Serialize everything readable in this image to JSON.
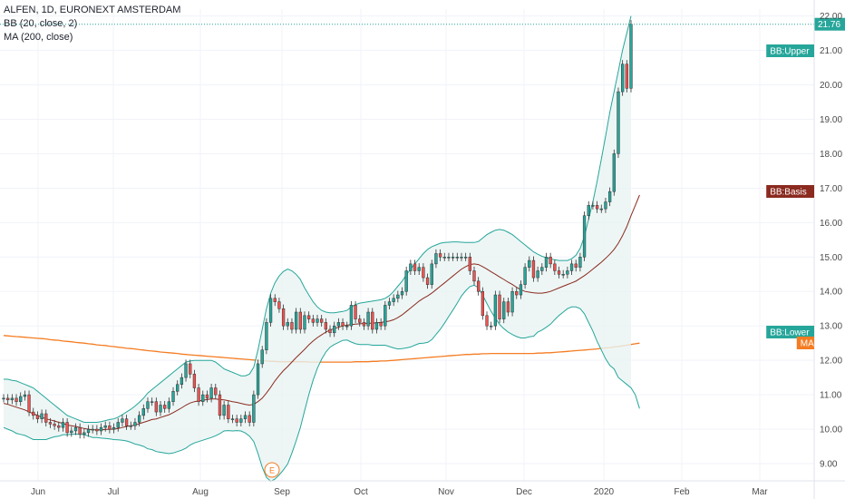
{
  "legend": {
    "symbol": "ALFEN, 1D, EURONEXT AMSTERDAM",
    "bb": "BB (20, close, 2)",
    "ma": "MA (200, close)"
  },
  "colors": {
    "up": "#26a69a",
    "down": "#ef5350",
    "bb_band": "#26a69a",
    "bb_basis": "#8b2a1f",
    "ma": "#f57c22",
    "fill": "#e8f4f2",
    "last_price": "#26a69a"
  },
  "chart_data": {
    "type": "candlestick",
    "x_ticks": [
      "Jun",
      "Jul",
      "Aug",
      "Sep",
      "Oct",
      "Nov",
      "Dec",
      "2020",
      "Feb",
      "Mar"
    ],
    "y_ticks": [
      "9.00",
      "10.00",
      "11.00",
      "12.00",
      "13.00",
      "14.00",
      "15.00",
      "16.00",
      "17.00",
      "18.00",
      "19.00",
      "20.00",
      "21.00",
      "22.00"
    ],
    "ylim": [
      8.5,
      22.2
    ],
    "last_price": "21.76",
    "tags": [
      "BB:Upper",
      "BB:Basis",
      "BB:Lower",
      "MA"
    ],
    "event_marker": "E",
    "close": [
      10.9,
      10.85,
      10.9,
      10.8,
      10.95,
      11.0,
      10.5,
      10.4,
      10.3,
      10.45,
      10.2,
      10.15,
      10.1,
      10.05,
      10.2,
      9.9,
      9.95,
      10.05,
      9.85,
      9.9,
      10.0,
      10.0,
      9.95,
      10.05,
      10.1,
      10.0,
      10.05,
      10.2,
      10.3,
      10.1,
      10.1,
      10.2,
      10.4,
      10.6,
      10.8,
      10.8,
      10.5,
      10.7,
      10.6,
      10.8,
      11.1,
      11.3,
      11.5,
      11.9,
      11.6,
      11.2,
      10.8,
      11.0,
      10.9,
      11.2,
      11.0,
      10.4,
      10.7,
      10.3,
      10.3,
      10.2,
      10.3,
      10.4,
      10.2,
      11.0,
      11.9,
      12.3,
      13.1,
      13.8,
      13.7,
      13.5,
      13.0,
      13.1,
      12.9,
      13.4,
      12.9,
      13.3,
      13.2,
      13.1,
      13.2,
      13.1,
      12.9,
      12.8,
      13.0,
      13.1,
      13.0,
      13.0,
      13.6,
      13.2,
      13.1,
      13.0,
      13.4,
      12.9,
      13.1,
      13.0,
      13.6,
      13.7,
      13.8,
      13.9,
      14.0,
      14.6,
      14.8,
      14.6,
      14.7,
      14.4,
      14.2,
      14.8,
      15.1,
      15.0,
      15.0,
      15.0,
      15.0,
      15.0,
      15.0,
      15.0,
      14.6,
      14.3,
      14.0,
      13.3,
      13.0,
      13.0,
      13.9,
      13.2,
      13.7,
      13.4,
      14.0,
      13.9,
      14.2,
      14.7,
      14.9,
      14.4,
      14.6,
      14.7,
      15.0,
      14.8,
      14.6,
      14.5,
      14.5,
      14.6,
      14.8,
      14.7,
      15.0,
      16.2,
      16.5,
      16.5,
      16.4,
      16.4,
      16.6,
      16.9,
      18.0,
      19.8,
      20.6,
      19.9,
      21.76
    ],
    "bb_basis": [
      10.75,
      10.72,
      10.68,
      10.64,
      10.6,
      10.56,
      10.5,
      10.45,
      10.4,
      10.35,
      10.3,
      10.27,
      10.24,
      10.2,
      10.17,
      10.12,
      10.1,
      10.08,
      10.05,
      10.02,
      10.0,
      9.98,
      9.98,
      9.98,
      9.99,
      10.0,
      10.0,
      10.02,
      10.05,
      10.08,
      10.1,
      10.12,
      10.16,
      10.2,
      10.24,
      10.28,
      10.3,
      10.34,
      10.38,
      10.42,
      10.48,
      10.55,
      10.62,
      10.7,
      10.76,
      10.8,
      10.82,
      10.84,
      10.86,
      10.88,
      10.88,
      10.86,
      10.85,
      10.83,
      10.8,
      10.78,
      10.75,
      10.72,
      10.7,
      10.72,
      10.8,
      10.9,
      11.05,
      11.22,
      11.4,
      11.56,
      11.7,
      11.82,
      11.95,
      12.08,
      12.2,
      12.32,
      12.45,
      12.56,
      12.66,
      12.74,
      12.82,
      12.88,
      12.92,
      12.96,
      13.0,
      13.02,
      13.04,
      13.05,
      13.06,
      13.07,
      13.08,
      13.08,
      13.09,
      13.1,
      13.12,
      13.14,
      13.18,
      13.24,
      13.32,
      13.42,
      13.52,
      13.62,
      13.72,
      13.8,
      13.87,
      13.95,
      14.05,
      14.15,
      14.25,
      14.35,
      14.45,
      14.55,
      14.65,
      14.72,
      14.78,
      14.8,
      14.78,
      14.72,
      14.65,
      14.57,
      14.5,
      14.42,
      14.35,
      14.27,
      14.2,
      14.12,
      14.05,
      14.0,
      13.98,
      13.96,
      13.95,
      13.95,
      13.97,
      14.0,
      14.05,
      14.1,
      14.15,
      14.2,
      14.25,
      14.3,
      14.38,
      14.46,
      14.55,
      14.65,
      14.75,
      14.85,
      14.96,
      15.08,
      15.22,
      15.4,
      15.62,
      15.88,
      16.2,
      16.5,
      16.8
    ],
    "bb_upper": [
      11.45,
      11.45,
      11.42,
      11.4,
      11.35,
      11.3,
      11.25,
      11.2,
      11.1,
      11.0,
      10.9,
      10.8,
      10.7,
      10.6,
      10.5,
      10.4,
      10.35,
      10.3,
      10.25,
      10.2,
      10.2,
      10.2,
      10.2,
      10.22,
      10.25,
      10.28,
      10.3,
      10.35,
      10.42,
      10.5,
      10.58,
      10.67,
      10.78,
      10.9,
      11.05,
      11.15,
      11.25,
      11.35,
      11.45,
      11.55,
      11.65,
      11.75,
      11.85,
      11.95,
      11.98,
      12.0,
      12.0,
      12.0,
      12.0,
      12.0,
      11.95,
      11.85,
      11.75,
      11.7,
      11.65,
      11.6,
      11.55,
      11.55,
      11.6,
      11.8,
      12.3,
      12.9,
      13.5,
      13.95,
      14.25,
      14.45,
      14.58,
      14.65,
      14.6,
      14.5,
      14.35,
      14.1,
      13.9,
      13.7,
      13.55,
      13.45,
      13.4,
      13.38,
      13.38,
      13.4,
      13.42,
      13.45,
      13.55,
      13.62,
      13.66,
      13.68,
      13.7,
      13.72,
      13.74,
      13.76,
      13.8,
      13.88,
      14.0,
      14.15,
      14.3,
      14.48,
      14.65,
      14.8,
      14.95,
      15.1,
      15.22,
      15.3,
      15.35,
      15.4,
      15.42,
      15.43,
      15.44,
      15.44,
      15.43,
      15.42,
      15.42,
      15.42,
      15.45,
      15.55,
      15.65,
      15.72,
      15.78,
      15.8,
      15.78,
      15.72,
      15.65,
      15.55,
      15.45,
      15.35,
      15.25,
      15.15,
      15.08,
      15.02,
      14.98,
      14.95,
      14.92,
      14.9,
      14.9,
      14.9,
      14.95,
      15.05,
      15.25,
      15.6,
      16.1,
      16.6,
      17.2,
      17.85,
      18.5,
      19.2,
      19.8,
      20.4,
      21.0,
      21.5,
      22.0
    ],
    "bb_lower": [
      10.05,
      10.0,
      9.95,
      9.88,
      9.85,
      9.82,
      9.76,
      9.7,
      9.7,
      9.7,
      9.7,
      9.74,
      9.78,
      9.8,
      9.84,
      9.84,
      9.85,
      9.86,
      9.85,
      9.84,
      9.8,
      9.76,
      9.76,
      9.74,
      9.73,
      9.72,
      9.7,
      9.69,
      9.68,
      9.66,
      9.62,
      9.57,
      9.54,
      9.5,
      9.43,
      9.41,
      9.35,
      9.33,
      9.31,
      9.29,
      9.31,
      9.35,
      9.39,
      9.45,
      9.54,
      9.6,
      9.64,
      9.68,
      9.72,
      9.76,
      9.81,
      9.87,
      9.95,
      9.96,
      9.95,
      9.96,
      9.95,
      9.89,
      9.8,
      9.64,
      9.3,
      8.9,
      8.6,
      8.49,
      8.55,
      8.67,
      8.82,
      8.99,
      9.3,
      9.66,
      10.05,
      10.54,
      11.0,
      11.42,
      11.77,
      12.03,
      12.24,
      12.38,
      12.46,
      12.52,
      12.58,
      12.59,
      12.53,
      12.48,
      12.46,
      12.46,
      12.46,
      12.44,
      12.44,
      12.44,
      12.44,
      12.4,
      12.36,
      12.33,
      12.34,
      12.36,
      12.39,
      12.44,
      12.49,
      12.5,
      12.52,
      12.6,
      12.75,
      12.9,
      13.08,
      13.27,
      13.46,
      13.66,
      13.87,
      14.02,
      14.14,
      14.18,
      14.11,
      13.89,
      13.65,
      13.42,
      13.22,
      13.04,
      12.92,
      12.82,
      12.75,
      12.69,
      12.65,
      12.65,
      12.68,
      12.7,
      12.82,
      12.88,
      12.96,
      13.05,
      13.18,
      13.3,
      13.4,
      13.5,
      13.55,
      13.55,
      13.5,
      13.35,
      13.1,
      12.85,
      12.55,
      12.3,
      12.05,
      11.85,
      11.75,
      11.5,
      11.4,
      11.3,
      11.2,
      11.0,
      10.6
    ],
    "ma": [
      12.72,
      12.71,
      12.7,
      12.69,
      12.68,
      12.67,
      12.66,
      12.65,
      12.64,
      12.63,
      12.62,
      12.6,
      12.59,
      12.58,
      12.56,
      12.55,
      12.54,
      12.52,
      12.51,
      12.5,
      12.48,
      12.47,
      12.45,
      12.44,
      12.43,
      12.41,
      12.4,
      12.38,
      12.37,
      12.35,
      12.34,
      12.33,
      12.31,
      12.3,
      12.28,
      12.27,
      12.26,
      12.24,
      12.23,
      12.22,
      12.21,
      12.2,
      12.18,
      12.17,
      12.16,
      12.15,
      12.14,
      12.13,
      12.12,
      12.11,
      12.1,
      12.09,
      12.08,
      12.07,
      12.06,
      12.05,
      12.04,
      12.03,
      12.02,
      12.01,
      12.0,
      11.99,
      11.98,
      11.97,
      11.97,
      11.96,
      11.96,
      11.96,
      11.96,
      11.96,
      11.96,
      11.96,
      11.95,
      11.95,
      11.95,
      11.95,
      11.95,
      11.95,
      11.95,
      11.95,
      11.95,
      11.95,
      11.95,
      11.96,
      11.96,
      11.96,
      11.96,
      11.97,
      11.97,
      11.98,
      11.98,
      11.99,
      12.0,
      12.01,
      12.02,
      12.03,
      12.04,
      12.05,
      12.06,
      12.07,
      12.08,
      12.09,
      12.1,
      12.11,
      12.12,
      12.13,
      12.14,
      12.15,
      12.16,
      12.17,
      12.17,
      12.18,
      12.18,
      12.19,
      12.19,
      12.2,
      12.2,
      12.2,
      12.2,
      12.2,
      12.2,
      12.2,
      12.2,
      12.2,
      12.2,
      12.2,
      12.21,
      12.21,
      12.22,
      12.22,
      12.23,
      12.24,
      12.25,
      12.26,
      12.27,
      12.28,
      12.29,
      12.3,
      12.31,
      12.32,
      12.33,
      12.35,
      12.36,
      12.37,
      12.39,
      12.4,
      12.42,
      12.44,
      12.46,
      12.48,
      12.5
    ]
  }
}
